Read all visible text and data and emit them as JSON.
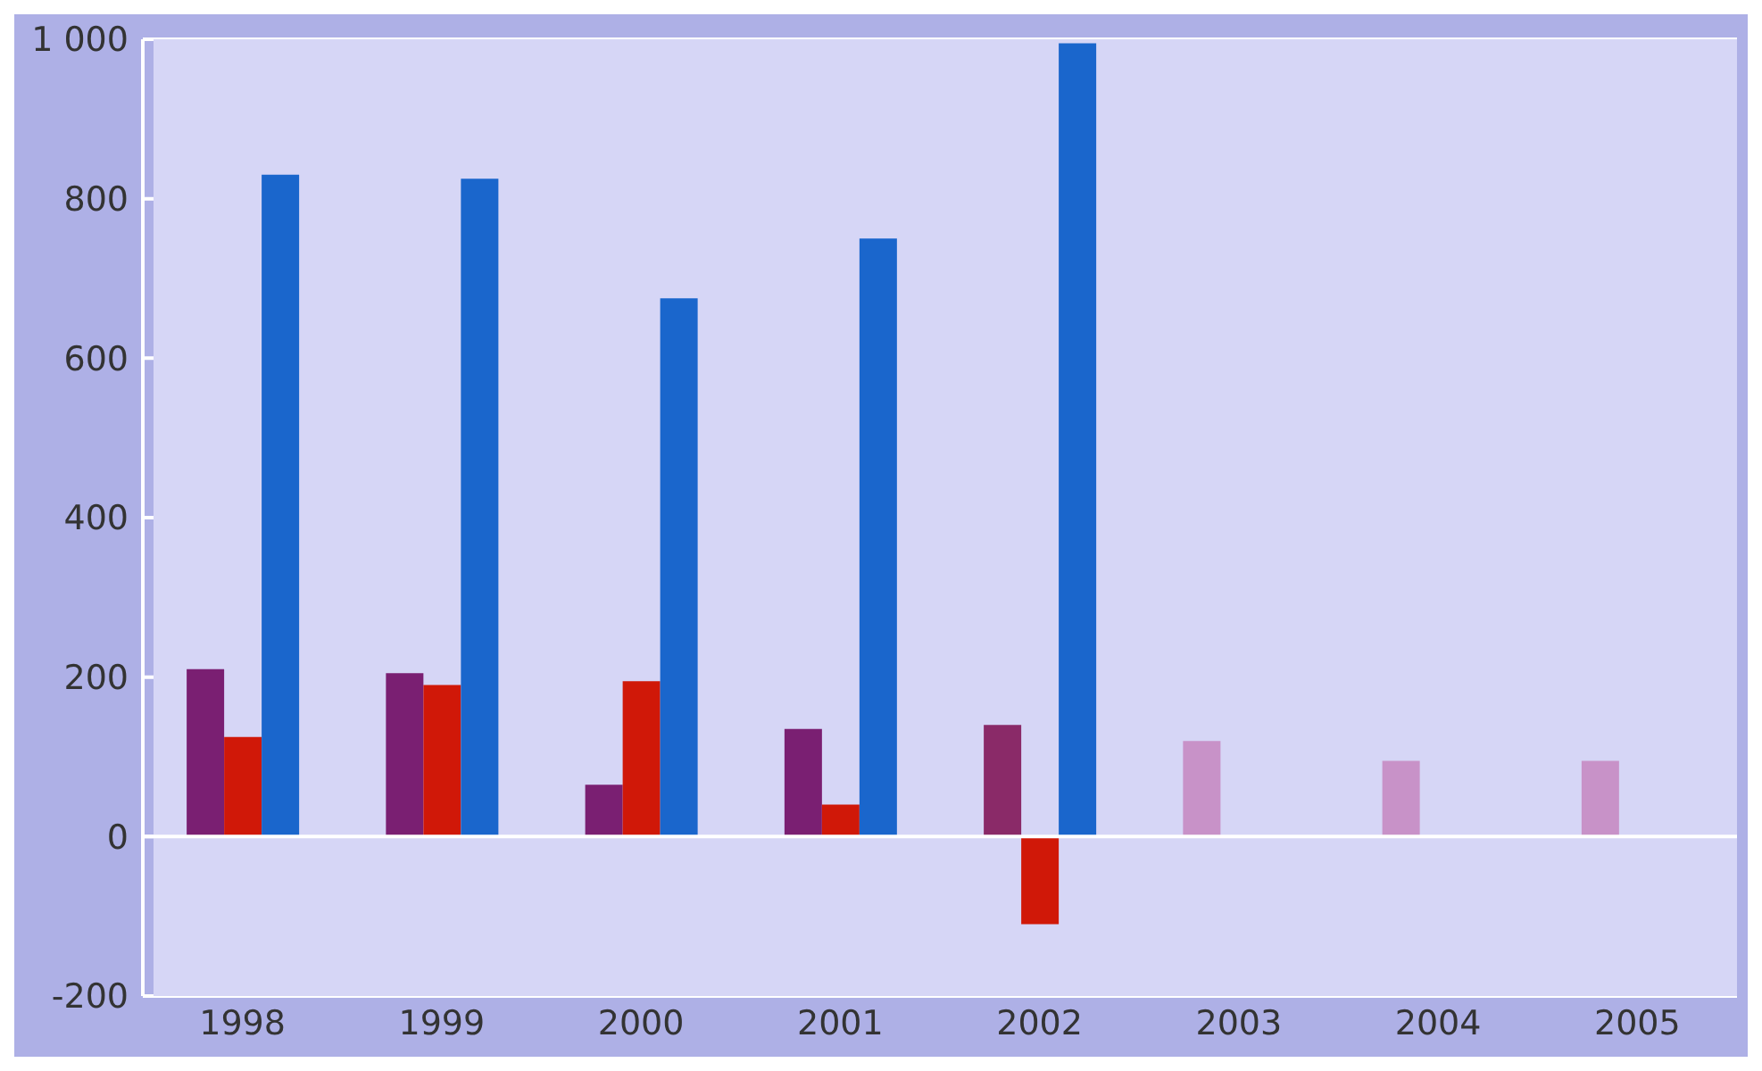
{
  "chart_data": {
    "type": "bar",
    "categories": [
      "1998",
      "1999",
      "2000",
      "2001",
      "2002",
      "2003",
      "2004",
      "2005"
    ],
    "series": [
      {
        "color": "#7a1f72",
        "colors": [
          "#7a1f72",
          "#7a1f72",
          "#7a1f72",
          "#7a1f72",
          "#8a2a68",
          "#c892c8",
          "#c892c8",
          "#c892c8"
        ],
        "values": [
          210,
          205,
          65,
          135,
          140,
          120,
          95,
          95
        ]
      },
      {
        "color": "#d01808",
        "values": [
          125,
          190,
          195,
          40,
          -110,
          null,
          null,
          null
        ]
      },
      {
        "color": "#1a66cc",
        "values": [
          830,
          825,
          675,
          750,
          995,
          null,
          null,
          null
        ]
      }
    ],
    "ylim": [
      -200,
      1000
    ],
    "yticks": [
      -200,
      0,
      200,
      400,
      600,
      {
        "value": 800,
        "label": "800"
      },
      {
        "value": 1000,
        "label": "1 000"
      }
    ],
    "grid": "y"
  }
}
